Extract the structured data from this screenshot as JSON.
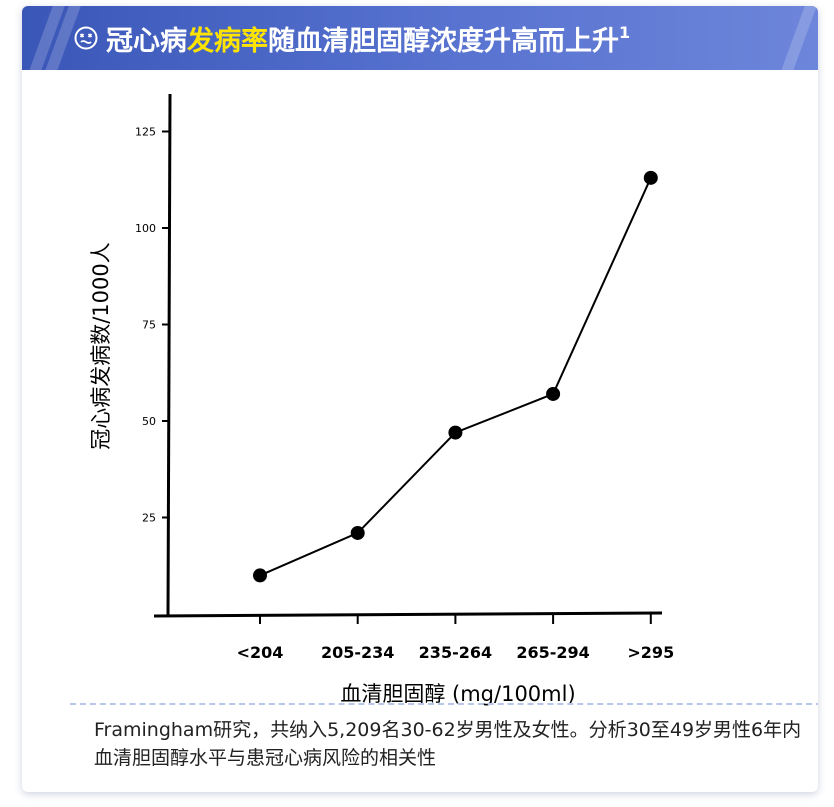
{
  "banner": {
    "title_pre": "冠心病",
    "title_highlight": "发病率",
    "title_post": "随血清胆固醇浓度升高而上升",
    "title_sup": "1"
  },
  "chart_data": {
    "type": "line",
    "categories": [
      "<204",
      "205-234",
      "235-264",
      "265-294",
      ">295"
    ],
    "values": [
      10,
      21,
      47,
      57,
      113
    ],
    "xlabel": "血清胆固醇 (mg/100ml)",
    "ylabel": "冠心病发病数/1000人",
    "yticks": [
      "25",
      "50",
      "75",
      "100",
      "125"
    ],
    "ylim": [
      0,
      135
    ],
    "grid": false,
    "markers": "filled-circle",
    "line_color": "#000000"
  },
  "footnote": "Framingham研究，共纳入5,209名30-62岁男性及女性。分析30至49岁男性6年内血清胆固醇水平与患冠心病风险的相关性"
}
